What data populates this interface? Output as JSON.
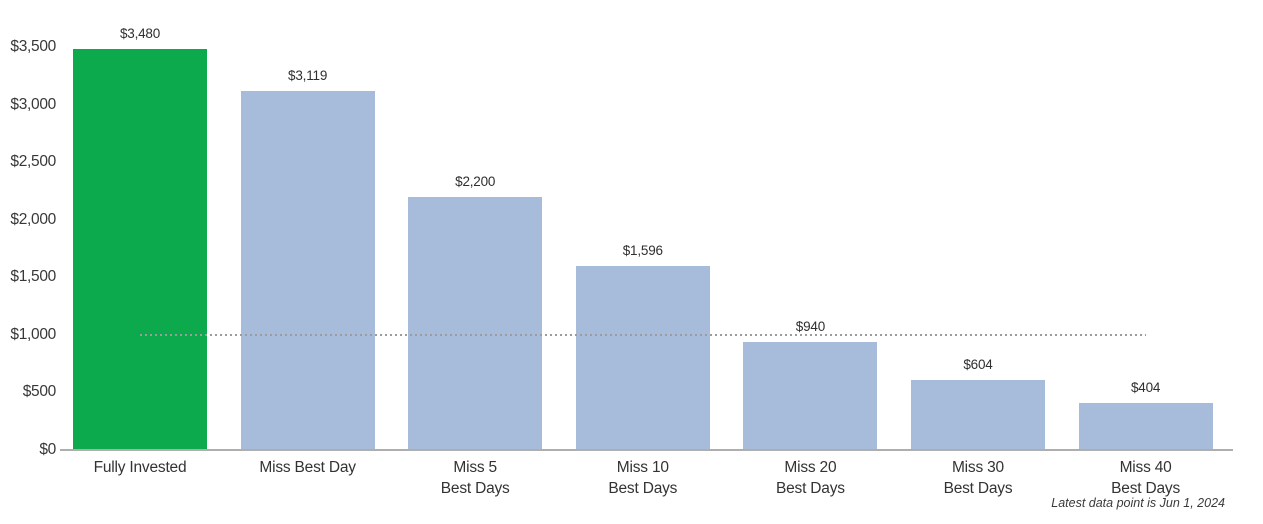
{
  "chart_data": {
    "type": "bar",
    "title": "",
    "categories": [
      "Fully Invested",
      "Miss Best Day",
      "Miss 5\nBest Days",
      "Miss 10\nBest Days",
      "Miss 20\nBest Days",
      "Miss 30\nBest Days",
      "Miss 40\nBest Days"
    ],
    "values": [
      3480,
      3119,
      2200,
      1596,
      940,
      604,
      404
    ],
    "value_labels": [
      "$3,480",
      "$3,119",
      "$2,200",
      "$1,596",
      "$940",
      "$604",
      "$404"
    ],
    "bar_colors": [
      "#0caa4d",
      "#a7bbdb",
      "#a7bbdb",
      "#a7bbdb",
      "#a7bbdb",
      "#a7bbdb",
      "#a7bbdb"
    ],
    "highlight_color": "#0caa4d",
    "default_bar_color": "#a7bbdb",
    "xlabel": "",
    "ylabel": "",
    "ylim": [
      0,
      3500
    ],
    "y_ticks": [
      {
        "label": "$3,500",
        "value": 3500
      },
      {
        "label": "$3,000",
        "value": 3000
      },
      {
        "label": "$2,500",
        "value": 2500
      },
      {
        "label": "$2,000",
        "value": 2000
      },
      {
        "label": "$1,500",
        "value": 1500
      },
      {
        "label": "$1,000",
        "value": 1000
      },
      {
        "label": "$500",
        "value": 500
      },
      {
        "label": "$0",
        "value": 0
      }
    ],
    "reference_line": {
      "value": 1000,
      "style": "dotted",
      "color": "#9c9c9c"
    },
    "grid": false,
    "legend": null,
    "footnote": "Latest data point is Jun 1, 2024"
  }
}
